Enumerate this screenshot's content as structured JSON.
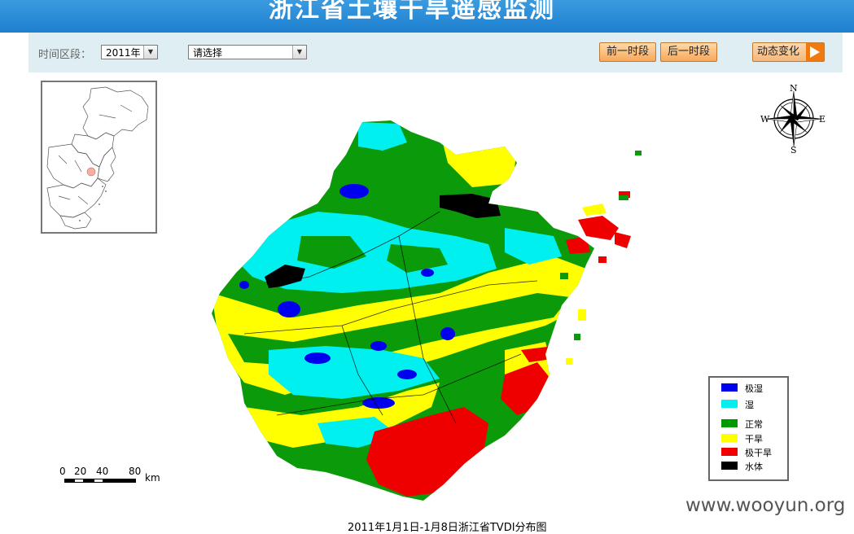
{
  "header": {
    "title": "浙江省土壤干旱遥感监测"
  },
  "toolbar": {
    "time_label": "时间区段：",
    "year_select": {
      "value": "2011年",
      "arrow_icon": "chevron-down-icon"
    },
    "period_select": {
      "value": "请选择",
      "arrow_icon": "chevron-down-icon"
    },
    "prev_label": "前一时段",
    "next_label": "后一时段",
    "animate_label": "动态变化",
    "play_icon": "play-icon"
  },
  "compass": {
    "n": "N",
    "s": "S",
    "e": "E",
    "w": "W"
  },
  "legend": {
    "items": [
      {
        "label": "极湿",
        "color": "#0000ee"
      },
      {
        "label": "湿",
        "color": "#00f0f0"
      },
      {
        "label": "正常",
        "color": "#009a00"
      },
      {
        "label": "干旱",
        "color": "#ffff00"
      },
      {
        "label": "极干旱",
        "color": "#ee0000"
      },
      {
        "label": "水体",
        "color": "#000000"
      }
    ]
  },
  "scale": {
    "ticks": [
      "0",
      "20",
      "40",
      "80"
    ],
    "unit": "km"
  },
  "map": {
    "caption": "2011年1月1日-1月8日浙江省TVDI分布图"
  },
  "watermark": "www.wooyun.org"
}
